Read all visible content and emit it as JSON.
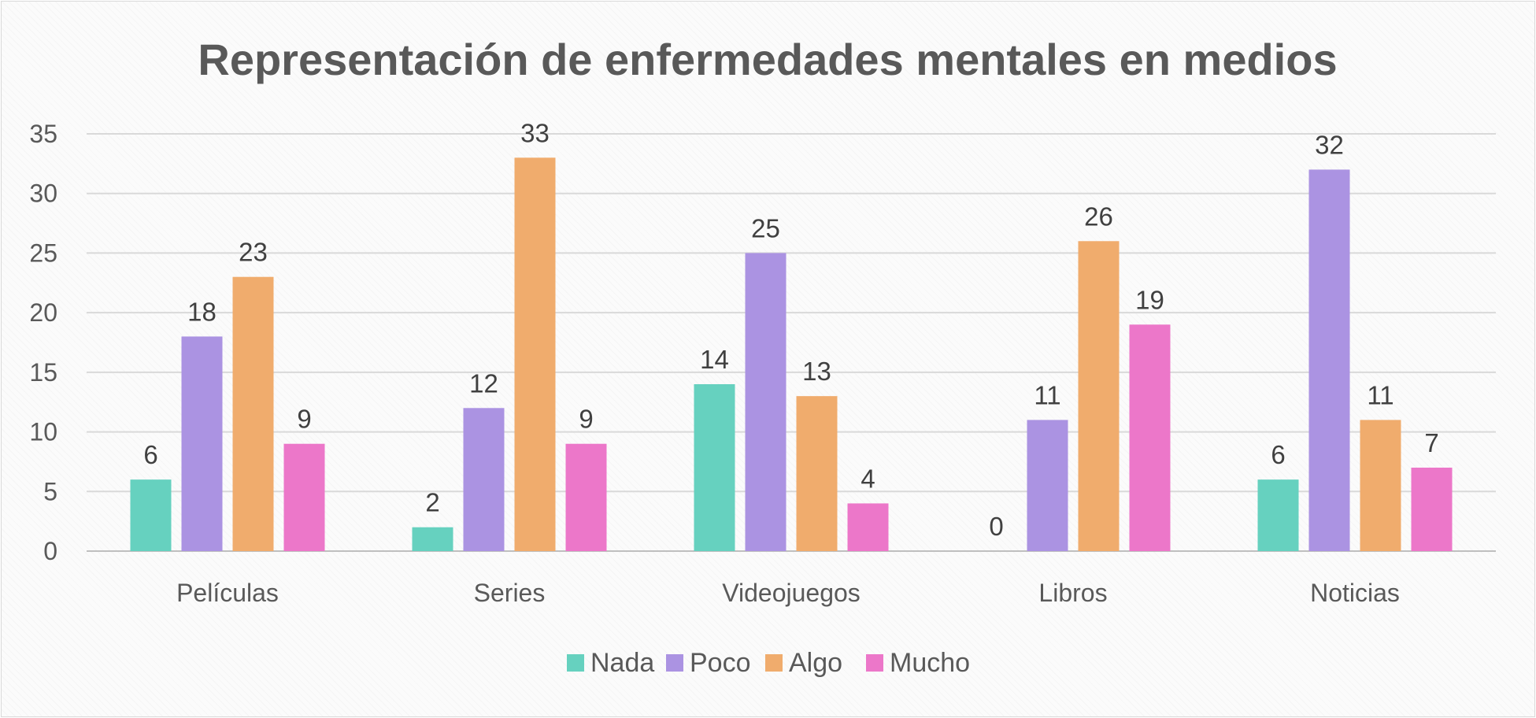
{
  "chart_data": {
    "type": "bar",
    "title": "Representación de enfermedades mentales en medios",
    "xlabel": "",
    "ylabel": "",
    "categories": [
      "Películas",
      "Series",
      "Videojuegos",
      "Libros",
      "Noticias"
    ],
    "series": [
      {
        "name": "Nada",
        "color": "#66d1bf",
        "values": [
          6,
          2,
          14,
          0,
          6
        ]
      },
      {
        "name": "Poco",
        "color": "#ab93e2",
        "values": [
          18,
          12,
          25,
          11,
          32
        ]
      },
      {
        "name": "Algo",
        "color": "#f0ac6d",
        "values": [
          23,
          33,
          13,
          26,
          11
        ]
      },
      {
        "name": "Mucho",
        "color": "#ec77c9",
        "values": [
          9,
          9,
          4,
          19,
          7
        ]
      }
    ],
    "ylim": [
      0,
      35
    ],
    "yticks": [
      0,
      5,
      10,
      15,
      20,
      25,
      30,
      35
    ],
    "grid": true,
    "legend": "bottom",
    "data_labels": true
  }
}
